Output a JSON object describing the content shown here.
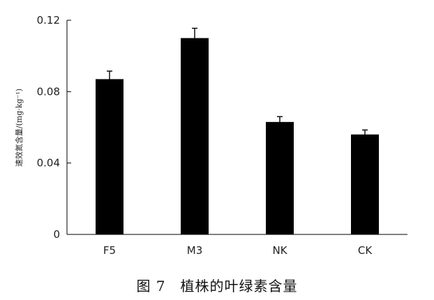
{
  "caption": "图 7　植株的叶绿素含量",
  "chart_data": {
    "type": "bar",
    "categories": [
      "F5",
      "M3",
      "NK",
      "CK"
    ],
    "values": [
      0.087,
      0.11,
      0.063,
      0.056
    ],
    "errors": [
      0.0045,
      0.0055,
      0.003,
      0.0025
    ],
    "ylabel": "速效氮含量/(mg·kg⁻¹)",
    "ylim": [
      0,
      0.12
    ],
    "yticks": [
      0,
      0.04,
      0.08,
      0.12
    ],
    "ytick_labels": [
      "0",
      "0.04",
      "0.08",
      "0.12"
    ],
    "bar_color": "#000000",
    "grid": false
  }
}
